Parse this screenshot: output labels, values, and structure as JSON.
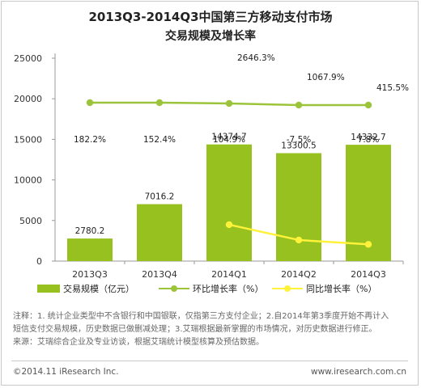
{
  "title_line1": "2013Q3-2014Q3中国第三方移动支付市场",
  "title_line2": "交易规模及增长率",
  "colors": {
    "bar": "#96c11f",
    "qoq": "#9cc43a",
    "yoy": "#fff23a"
  },
  "chart_data": {
    "type": "bar",
    "categories": [
      "2013Q3",
      "2013Q4",
      "2014Q1",
      "2014Q2",
      "2014Q3"
    ],
    "ylim": [
      0,
      25000
    ],
    "yticks": [
      "0",
      "5000",
      "10000",
      "15000",
      "20000",
      "25000"
    ],
    "grid": false,
    "legend": "bottom",
    "series": [
      {
        "name": "交易规模（亿元）",
        "kind": "bar",
        "values": [
          2780.2,
          7016.2,
          14374.7,
          13300.5,
          14332.7
        ],
        "labels": [
          "2780.2",
          "7016.2",
          "14374.7",
          "13300.5",
          "14332.7"
        ]
      },
      {
        "name": "环比增长率（%）",
        "kind": "line",
        "values": [
          182.2,
          152.4,
          104.9,
          -7.5,
          7.8
        ],
        "labels": [
          "182.2%",
          "152.4%",
          "104.9%",
          "-7.5%",
          "7.8%"
        ]
      },
      {
        "name": "同比增长率（%）",
        "kind": "line",
        "values": [
          null,
          null,
          2646.3,
          1067.9,
          415.5
        ],
        "labels": [
          "",
          "",
          "2646.3%",
          "1067.9%",
          "415.5%"
        ]
      }
    ]
  },
  "notes": [
    "注释：1. 统计企业类型中不含银行和中国银联，仅指第三方支付企业；2.自2014年第3季度开始不再计入",
    "短信支付交易规模，历史数据已做删减处理；3.艾瑞根据最新掌握的市场情况，对历史数据进行修正。",
    "来源：艾瑞综合企业及专业访谈，根据艾瑞统计模型核算及预估数据。"
  ],
  "footer_left": "©2014.11 iResearch Inc.",
  "footer_right": "www.iresearch.com.cn"
}
